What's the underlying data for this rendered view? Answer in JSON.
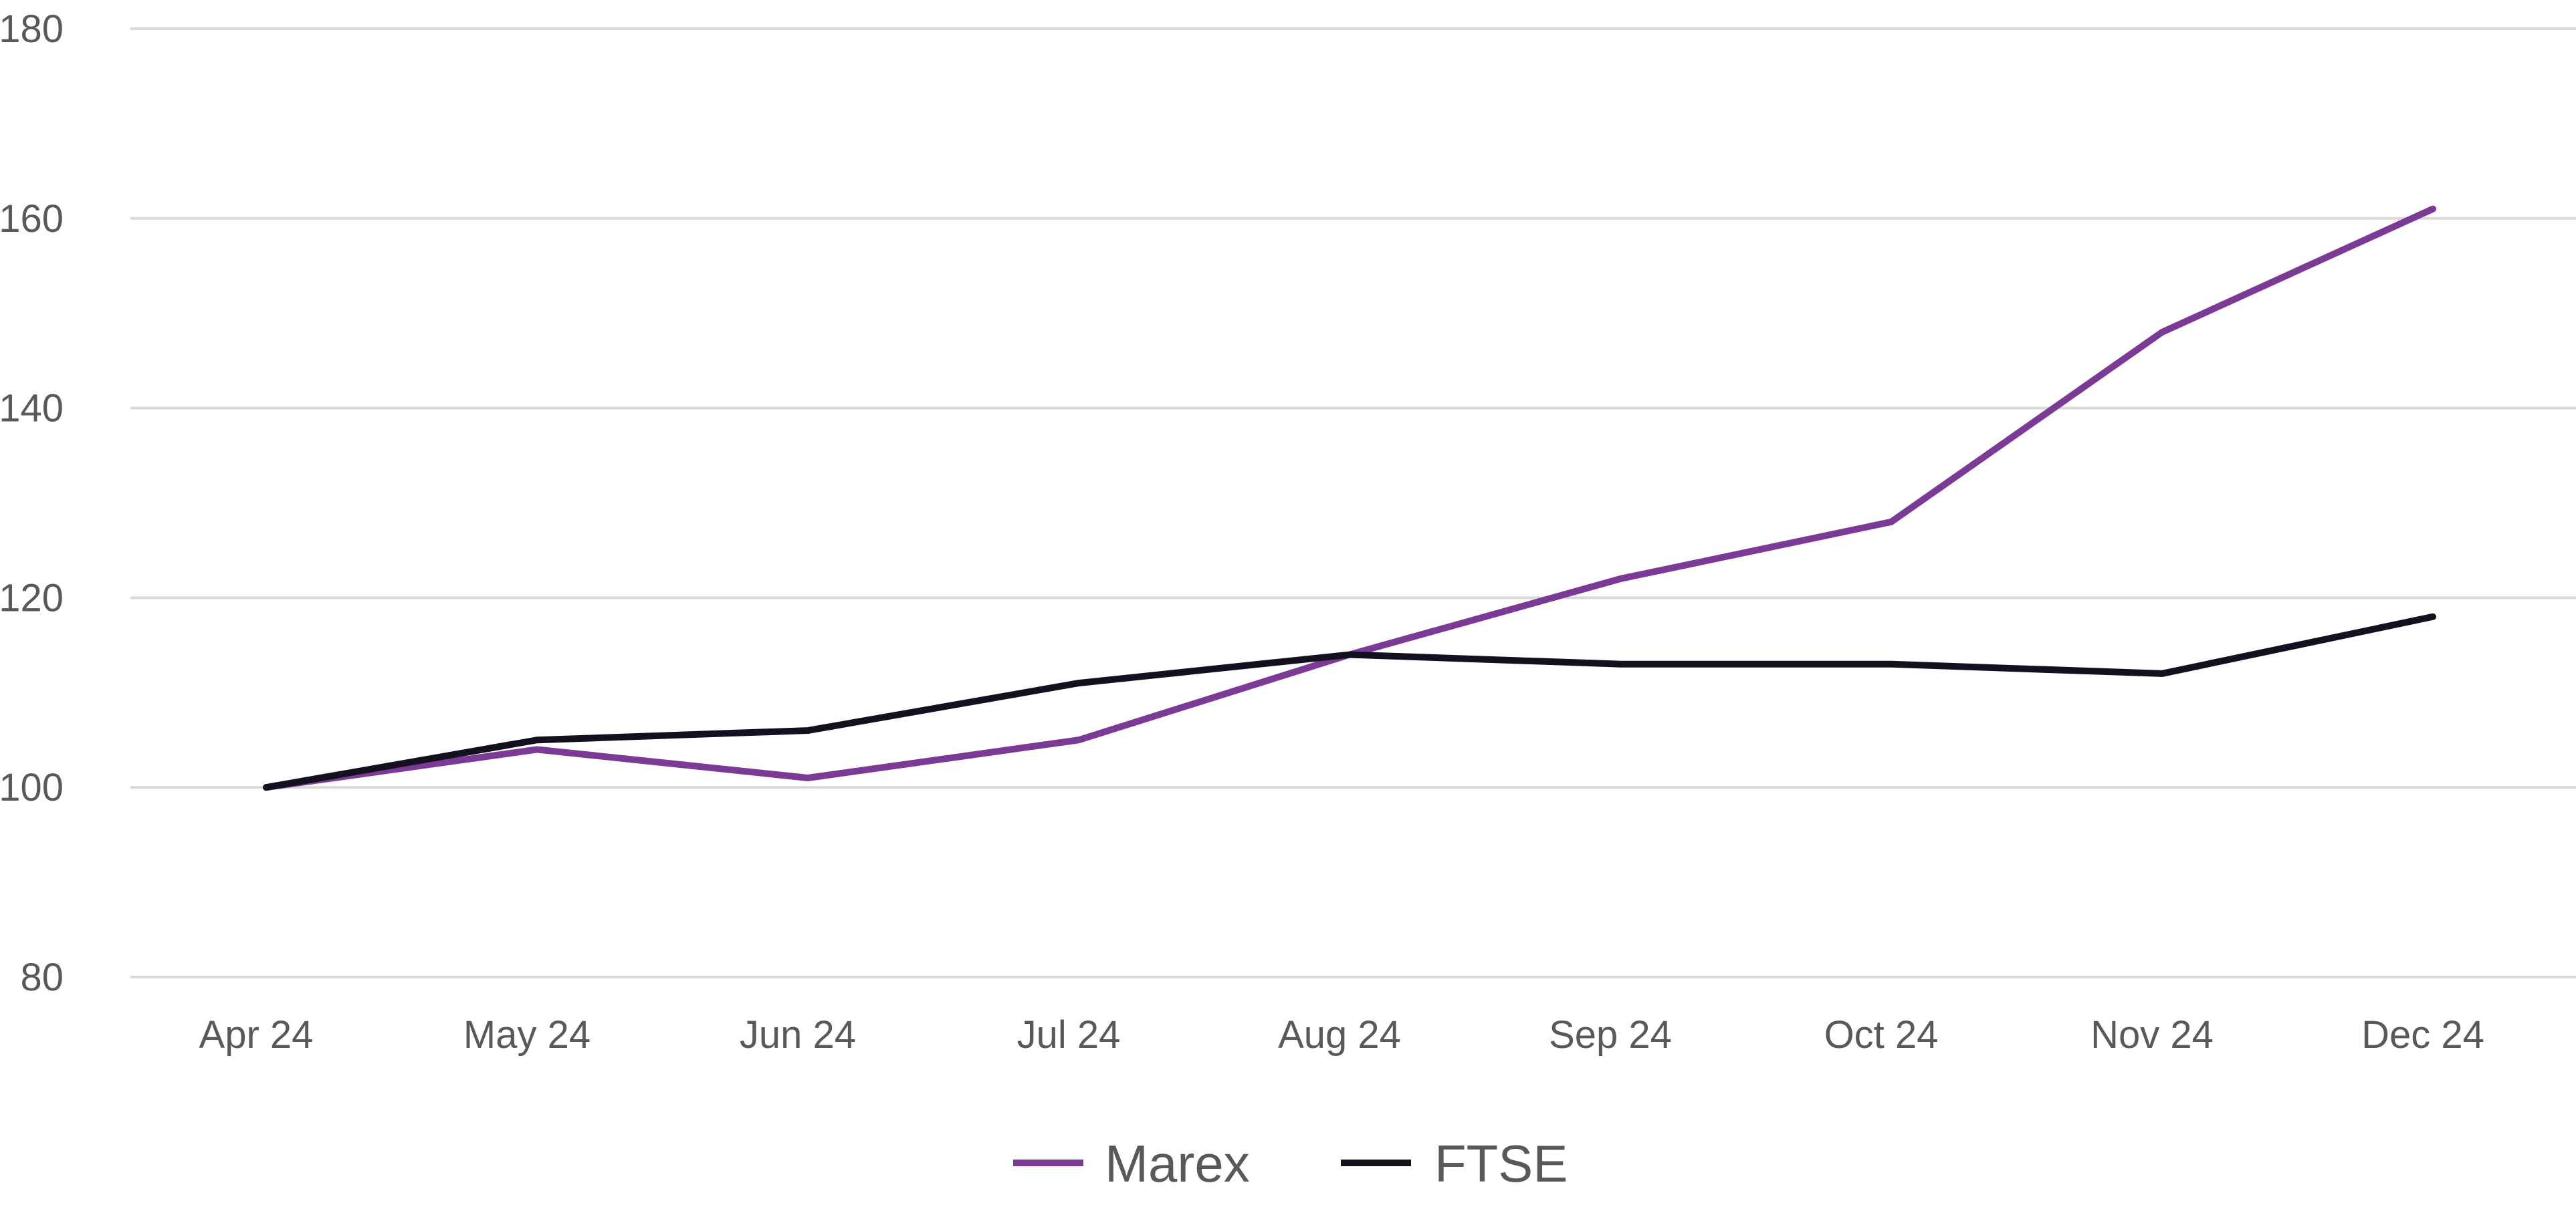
{
  "chart_data": {
    "type": "line",
    "title": "",
    "xlabel": "",
    "ylabel": "",
    "categories": [
      "Apr 24",
      "May 24",
      "Jun 24",
      "Jul 24",
      "Aug 24",
      "Sep 24",
      "Oct 24",
      "Nov 24",
      "Dec 24"
    ],
    "ylim": [
      80,
      180
    ],
    "yticks": [
      "80",
      "100",
      "120",
      "140",
      "160",
      "180"
    ],
    "grid": true,
    "legend_position": "bottom",
    "series": [
      {
        "name": "Marex",
        "color": "#7b3a96",
        "values": [
          100,
          104,
          101,
          105,
          114,
          122,
          128,
          148,
          161
        ]
      },
      {
        "name": "FTSE",
        "color": "#14101f",
        "values": [
          100,
          105,
          106,
          111,
          114,
          113,
          113,
          112,
          118
        ]
      }
    ]
  }
}
